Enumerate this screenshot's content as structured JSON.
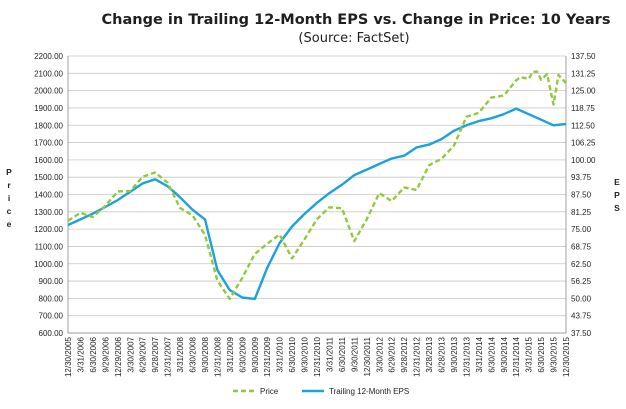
{
  "chart_data": {
    "type": "line",
    "title": "Change in Trailing 12-Month EPS vs. Change in Price: 10 Years",
    "subtitle": "(Source: FactSet)",
    "ylabel_left": "Price",
    "ylabel_right": "EPS",
    "ylim_left": [
      600,
      2200
    ],
    "ylim_right": [
      37.5,
      137.5
    ],
    "yticks_left": [
      "600.00",
      "700.00",
      "800.00",
      "900.00",
      "1000.00",
      "1100.00",
      "1200.00",
      "1300.00",
      "1400.00",
      "1500.00",
      "1600.00",
      "1700.00",
      "1800.00",
      "1900.00",
      "2000.00",
      "2100.00",
      "2200.00"
    ],
    "yticks_right": [
      "37.50",
      "43.75",
      "50.00",
      "56.25",
      "62.50",
      "68.75",
      "75.00",
      "81.25",
      "87.50",
      "93.75",
      "100.00",
      "106.25",
      "112.50",
      "118.75",
      "125.00",
      "131.25",
      "137.50"
    ],
    "x_tick_labels": [
      "12/30/2005",
      "3/31/2006",
      "6/30/2006",
      "9/29/2006",
      "12/29/2006",
      "3/30/2007",
      "6/29/2007",
      "9/28/2007",
      "12/31/2007",
      "3/31/2008",
      "6/30/2008",
      "9/30/2008",
      "12/31/2008",
      "3/31/2009",
      "6/30/2009",
      "9/30/2009",
      "12/31/2009",
      "3/31/2010",
      "6/30/2010",
      "9/30/2010",
      "12/31/2010",
      "3/31/2011",
      "6/30/2011",
      "9/30/2011",
      "12/30/2011",
      "3/30/2012",
      "6/29/2012",
      "9/28/2012",
      "12/31/2012",
      "3/28/2013",
      "6/28/2013",
      "9/30/2013",
      "12/31/2013",
      "3/31/2014",
      "6/30/2014",
      "9/30/2014",
      "12/31/2014",
      "3/31/2015",
      "6/30/2015",
      "9/30/2015",
      "12/30/2015"
    ],
    "grid": true,
    "legend_position": "bottom",
    "series": [
      {
        "name": "Price",
        "axis": "left",
        "color": "#92c83e",
        "style": "dashed",
        "x": [
          0,
          0.25,
          0.5,
          0.75,
          1,
          1.25,
          1.5,
          1.75,
          2,
          2.25,
          2.5,
          2.75,
          3,
          3.25,
          3.5,
          3.75,
          4,
          4.25,
          4.5,
          4.75,
          5,
          5.25,
          5.5,
          5.75,
          6,
          6.25,
          6.5,
          6.75,
          7,
          7.25,
          7.5,
          7.75,
          8,
          8.25,
          8.5,
          8.75,
          9,
          9.25,
          9.5,
          9.75,
          10
        ],
        "values": [
          1248,
          1295,
          1270,
          1335,
          1418,
          1420,
          1503,
          1527,
          1468,
          1322,
          1280,
          1166,
          903,
          797,
          919,
          1057,
          1115,
          1169,
          1031,
          1141,
          1258,
          1326,
          1321,
          1131,
          1258,
          1408,
          1362,
          1441,
          1426,
          1569,
          1606,
          1682,
          1848,
          1872,
          1960,
          1972,
          2059,
          2068,
          2063,
          1920,
          2044
        ],
        "fine_x": [
          9.08,
          9.33,
          9.42,
          9.62,
          9.85
        ],
        "fine_values": [
          2078,
          2108,
          2110,
          2095,
          2090
        ]
      },
      {
        "name": "Trailing 12-Month EPS",
        "axis": "right",
        "color": "#1da1dc",
        "style": "solid",
        "x": [
          0,
          0.25,
          0.5,
          0.75,
          1,
          1.25,
          1.5,
          1.75,
          2,
          2.25,
          2.5,
          2.75,
          3,
          3.25,
          3.5,
          3.75,
          4,
          4.25,
          4.5,
          4.75,
          5,
          5.25,
          5.5,
          5.75,
          6,
          6.25,
          6.5,
          6.75,
          7,
          7.25,
          7.5,
          7.75,
          8,
          8.25,
          8.5,
          8.75,
          9,
          9.25,
          9.5,
          9.75,
          10
        ],
        "values": [
          76.5,
          78.5,
          80.6,
          83.0,
          85.5,
          88.5,
          91.5,
          93.0,
          90.5,
          86.5,
          82.0,
          78.5,
          60.2,
          53.0,
          50.3,
          49.8,
          61.0,
          70.0,
          76.0,
          80.5,
          84.5,
          88.0,
          91.0,
          94.5,
          96.5,
          98.5,
          100.5,
          101.5,
          104.5,
          105.5,
          107.5,
          110.5,
          112.5,
          114.0,
          115.0,
          116.5,
          118.5,
          116.5,
          114.5,
          112.5,
          113.0
        ]
      }
    ]
  }
}
